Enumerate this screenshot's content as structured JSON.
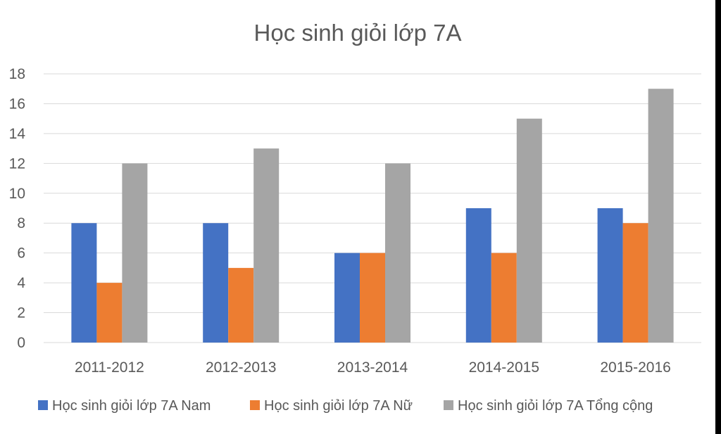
{
  "chart_data": {
    "type": "bar",
    "title": "Học sinh giỏi lớp 7A",
    "xlabel": "",
    "ylabel": "",
    "categories": [
      "2011-2012",
      "2012-2013",
      "2013-2014",
      "2014-2015",
      "2015-2016"
    ],
    "series": [
      {
        "name": "Học sinh giỏi lớp 7A Nam",
        "color": "#4472C4",
        "values": [
          8,
          8,
          6,
          9,
          9
        ]
      },
      {
        "name": "Học sinh giỏi lớp 7A Nữ",
        "color": "#ED7D31",
        "values": [
          4,
          5,
          6,
          6,
          8
        ]
      },
      {
        "name": "Học sinh giỏi lớp 7A Tổng cộng",
        "color": "#A5A5A5",
        "values": [
          12,
          13,
          12,
          15,
          17
        ]
      }
    ],
    "ylim": [
      0,
      18
    ],
    "yticks": [
      0,
      2,
      4,
      6,
      8,
      10,
      12,
      14,
      16,
      18
    ],
    "grid": true,
    "legend": "bottom"
  }
}
